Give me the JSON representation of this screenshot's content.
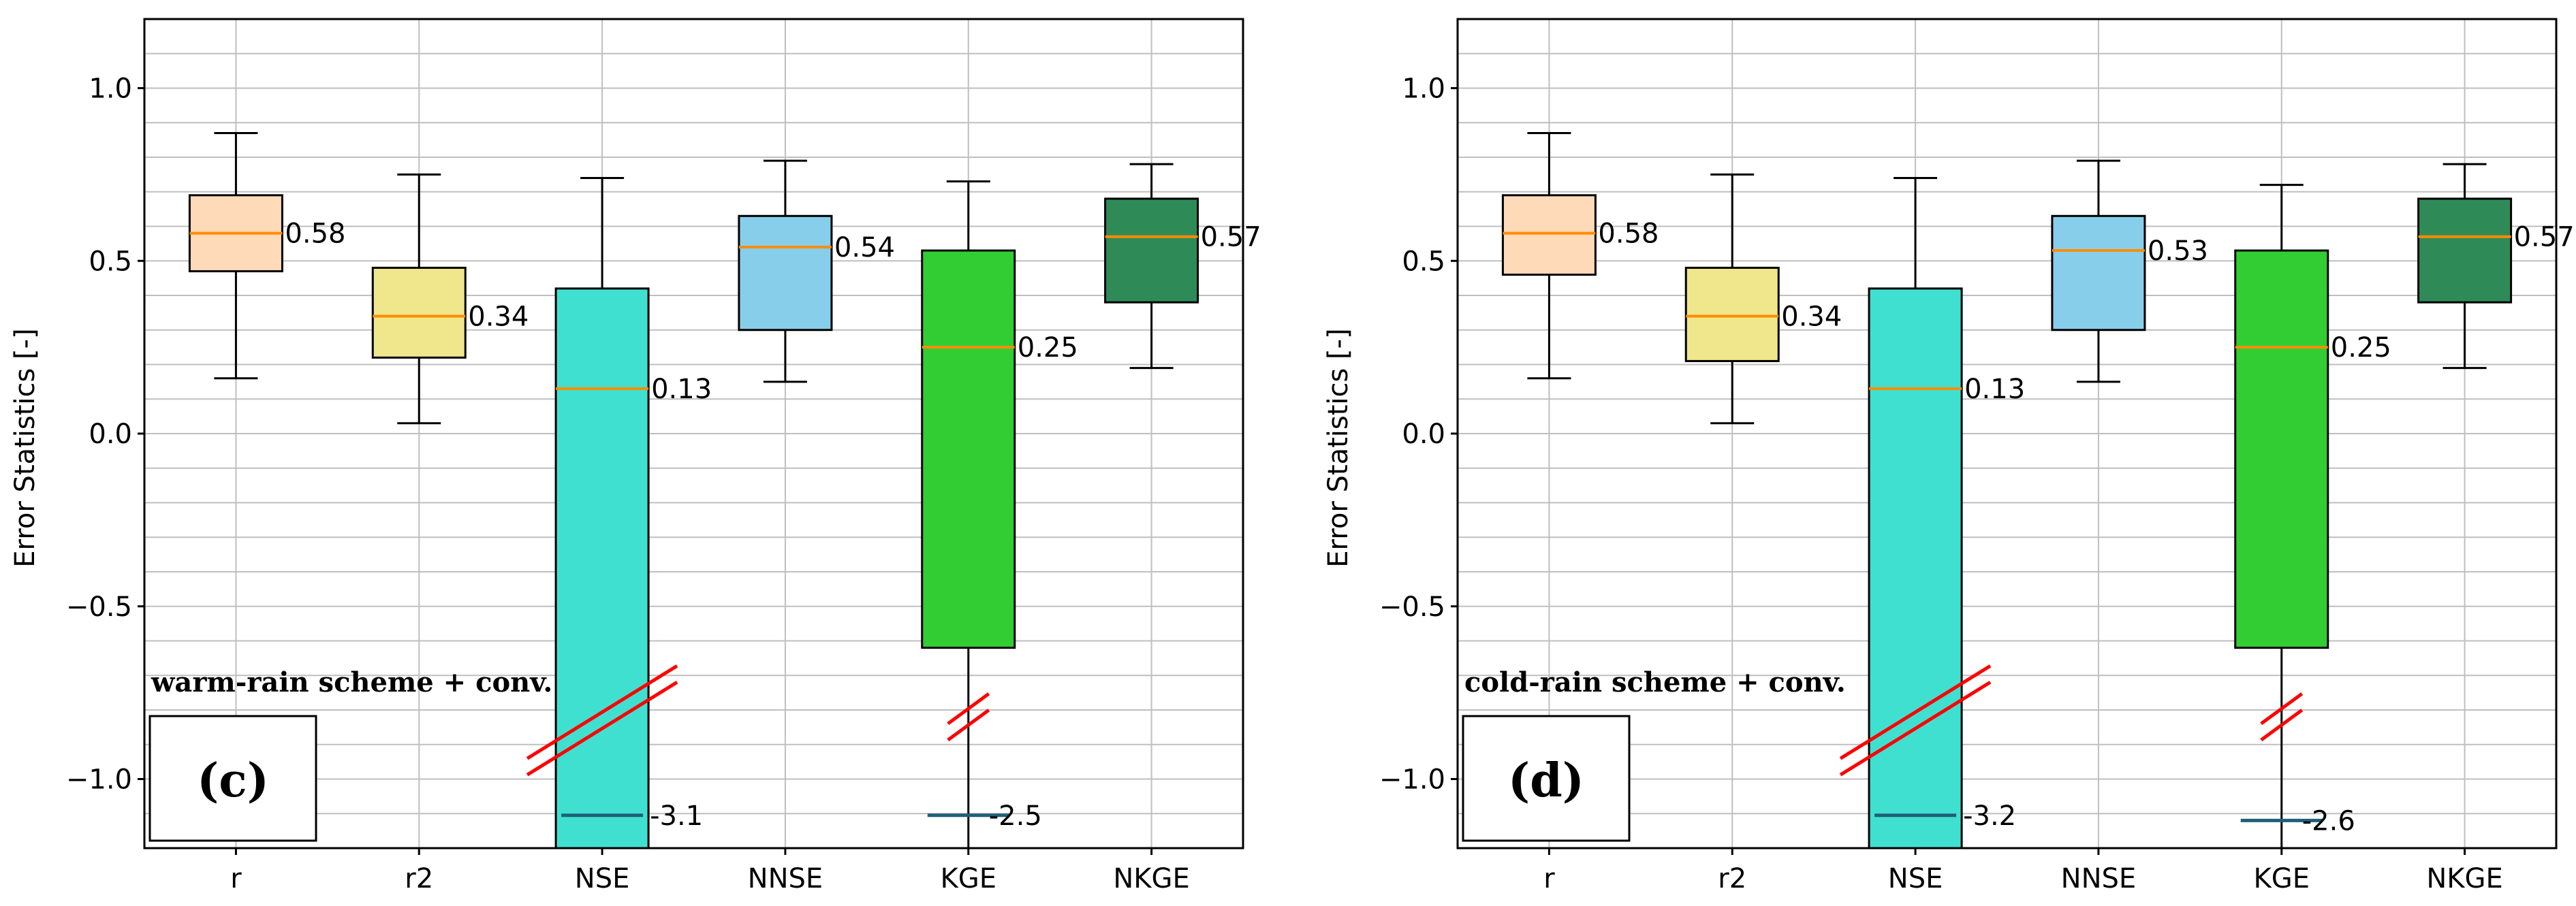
{
  "colors": {
    "r": "#FFDAB9",
    "r2": "#F0E68C",
    "NSE": "#40E0D0",
    "NNSE": "#87CEEB",
    "KGE": "#32CD32",
    "NKGE": "#2E8B57",
    "median": "#FF8C00",
    "extreme": "#1F5F7A",
    "break": "#FF0000",
    "grid": "#BFBFBF"
  },
  "chart_data": [
    {
      "type": "box",
      "panel": "(c)",
      "annotation": "warm-rain scheme + conv.",
      "ylabel": "Error Statistics [-]",
      "ylim": [
        -1.2,
        1.2
      ],
      "yticks": [
        -1.0,
        -0.5,
        0.0,
        0.5,
        1.0
      ],
      "ytick_labels": [
        "−1.0",
        "−0.5",
        "0.0",
        "0.5",
        "1.0"
      ],
      "categories": [
        "r",
        "r2",
        "NSE",
        "NNSE",
        "KGE",
        "NKGE"
      ],
      "boxes": [
        {
          "name": "r",
          "whisker_low": 0.16,
          "q1": 0.47,
          "median": 0.58,
          "q3": 0.69,
          "whisker_high": 0.87,
          "label": "0.58"
        },
        {
          "name": "r2",
          "whisker_low": 0.03,
          "q1": 0.22,
          "median": 0.34,
          "q3": 0.48,
          "whisker_high": 0.75,
          "label": "0.34"
        },
        {
          "name": "NSE",
          "whisker_low": -1.2,
          "q1": -1.2,
          "median": 0.13,
          "q3": 0.42,
          "whisker_high": 0.74,
          "label": "0.13",
          "extreme": -1.105,
          "extreme_label": "-3.1",
          "break_at": -0.83
        },
        {
          "name": "NNSE",
          "whisker_low": 0.15,
          "q1": 0.3,
          "median": 0.54,
          "q3": 0.63,
          "whisker_high": 0.79,
          "label": "0.54"
        },
        {
          "name": "KGE",
          "whisker_low": -1.2,
          "q1": -0.62,
          "median": 0.25,
          "q3": 0.53,
          "whisker_high": 0.73,
          "label": "0.25",
          "extreme": -1.105,
          "extreme_label": "-2.5",
          "break_at": -0.82
        },
        {
          "name": "NKGE",
          "whisker_low": 0.19,
          "q1": 0.38,
          "median": 0.57,
          "q3": 0.68,
          "whisker_high": 0.78,
          "label": "0.57"
        }
      ]
    },
    {
      "type": "box",
      "panel": "(d)",
      "annotation": "cold-rain scheme + conv.",
      "ylabel": "Error Statistics [-]",
      "ylim": [
        -1.2,
        1.2
      ],
      "yticks": [
        -1.0,
        -0.5,
        0.0,
        0.5,
        1.0
      ],
      "ytick_labels": [
        "−1.0",
        "−0.5",
        "0.0",
        "0.5",
        "1.0"
      ],
      "categories": [
        "r",
        "r2",
        "NSE",
        "NNSE",
        "KGE",
        "NKGE"
      ],
      "boxes": [
        {
          "name": "r",
          "whisker_low": 0.16,
          "q1": 0.46,
          "median": 0.58,
          "q3": 0.69,
          "whisker_high": 0.87,
          "label": "0.58"
        },
        {
          "name": "r2",
          "whisker_low": 0.03,
          "q1": 0.21,
          "median": 0.34,
          "q3": 0.48,
          "whisker_high": 0.75,
          "label": "0.34"
        },
        {
          "name": "NSE",
          "whisker_low": -1.2,
          "q1": -1.2,
          "median": 0.13,
          "q3": 0.42,
          "whisker_high": 0.74,
          "label": "0.13",
          "extreme": -1.105,
          "extreme_label": "-3.2",
          "break_at": -0.83
        },
        {
          "name": "NNSE",
          "whisker_low": 0.15,
          "q1": 0.3,
          "median": 0.53,
          "q3": 0.63,
          "whisker_high": 0.79,
          "label": "0.53"
        },
        {
          "name": "KGE",
          "whisker_low": -1.2,
          "q1": -0.62,
          "median": 0.25,
          "q3": 0.53,
          "whisker_high": 0.72,
          "label": "0.25",
          "extreme": -1.12,
          "extreme_label": "-2.6",
          "break_at": -0.82
        },
        {
          "name": "NKGE",
          "whisker_low": 0.19,
          "q1": 0.38,
          "median": 0.57,
          "q3": 0.68,
          "whisker_high": 0.78,
          "label": "0.57"
        }
      ]
    }
  ]
}
